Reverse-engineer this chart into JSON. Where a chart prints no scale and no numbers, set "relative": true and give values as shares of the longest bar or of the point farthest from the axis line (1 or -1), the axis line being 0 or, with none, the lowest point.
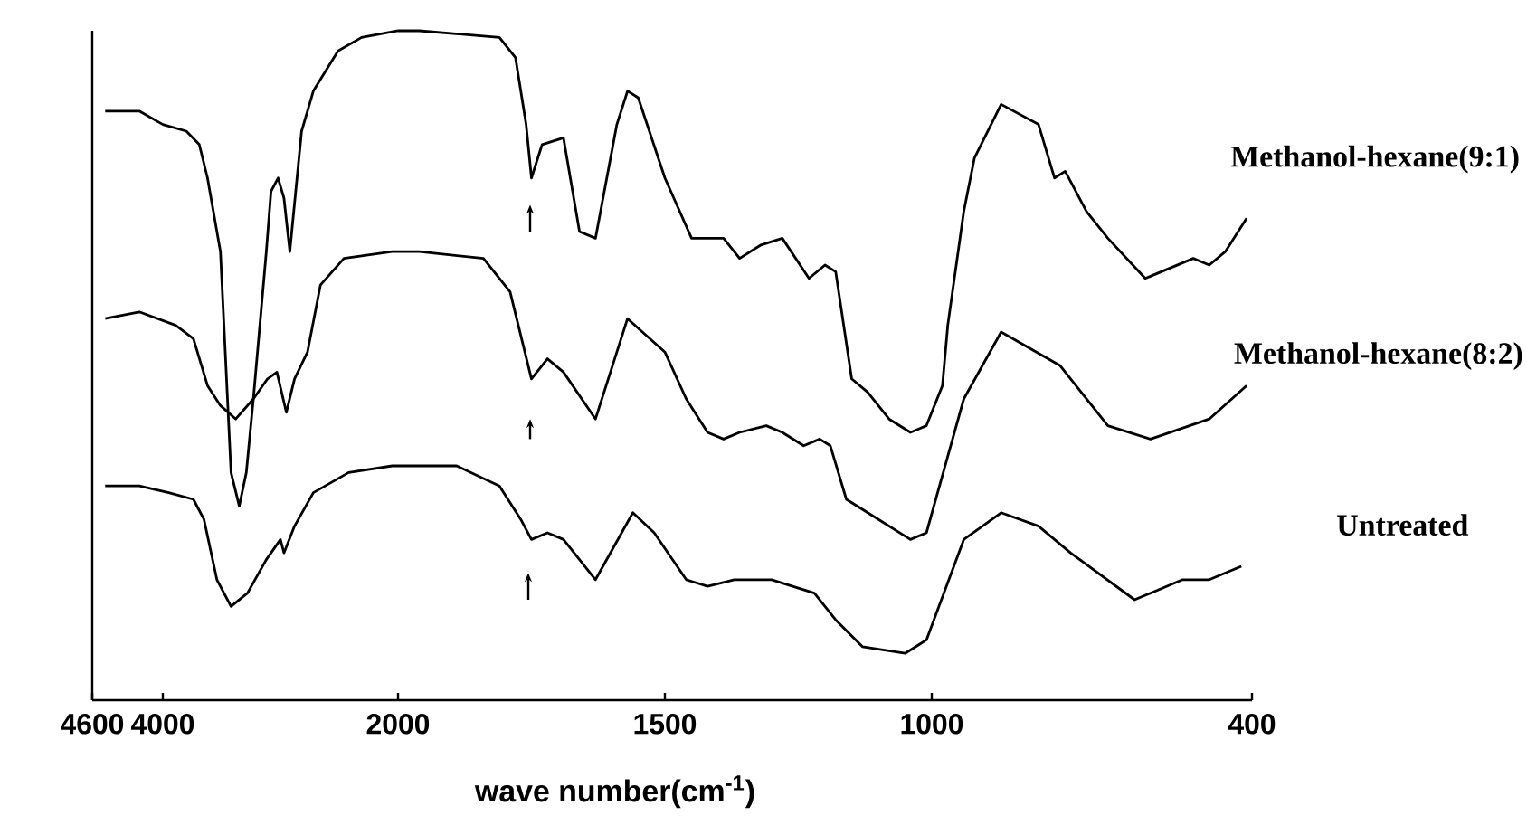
{
  "chart_data": [
    {
      "type": "line",
      "relative": true,
      "xlim": [
        4600,
        2000
      ],
      "xticks": [
        4600,
        4000,
        2000
      ],
      "series": [
        {
          "color": "#000000",
          "x": [
            4490,
            4200,
            4000,
            3800,
            3690,
            3620,
            3510,
            3420,
            3350,
            3290,
            3230,
            3120,
            3080,
            3020,
            2970,
            2920,
            2820,
            2720,
            2510,
            2310,
            2000
          ],
          "values": [
            0.88,
            0.88,
            0.86,
            0.85,
            0.83,
            0.78,
            0.67,
            0.34,
            0.29,
            0.34,
            0.45,
            0.67,
            0.76,
            0.78,
            0.75,
            0.67,
            0.85,
            0.91,
            0.97,
            0.99,
            1.0
          ]
        },
        {
          "color": "#000000",
          "x": [
            4490,
            4200,
            3890,
            3740,
            3620,
            3510,
            3380,
            3230,
            3110,
            3030,
            2950,
            2880,
            2770,
            2660,
            2460,
            2050,
            2000
          ],
          "values": [
            0.57,
            0.58,
            0.56,
            0.54,
            0.47,
            0.44,
            0.42,
            0.45,
            0.48,
            0.49,
            0.43,
            0.48,
            0.52,
            0.62,
            0.66,
            0.67,
            0.67
          ]
        },
        {
          "color": "#000000",
          "x": [
            4490,
            4200,
            3950,
            3740,
            3650,
            3540,
            3420,
            3280,
            3120,
            3000,
            2970,
            2880,
            2720,
            2420,
            2050,
            2000
          ],
          "values": [
            0.32,
            0.32,
            0.31,
            0.3,
            0.27,
            0.18,
            0.14,
            0.16,
            0.21,
            0.24,
            0.22,
            0.26,
            0.31,
            0.34,
            0.35,
            0.35
          ]
        }
      ]
    },
    {
      "type": "line",
      "relative": true,
      "xlabel": "wave number(cm$^{-1}$)",
      "xlim": [
        2000,
        400
      ],
      "xticks": [
        1500,
        1000,
        400
      ],
      "series": [
        {
          "name": "Methanol-hexane(9:1)",
          "color": "#000000",
          "x": [
            2000,
            1960,
            1810,
            1780,
            1760,
            1750,
            1730,
            1690,
            1660,
            1630,
            1590,
            1570,
            1550,
            1500,
            1450,
            1390,
            1360,
            1320,
            1280,
            1230,
            1200,
            1180,
            1150,
            1120,
            1080,
            1040,
            1010,
            980,
            970,
            940,
            920,
            870,
            800,
            770,
            750,
            710,
            670,
            600,
            510,
            480,
            450,
            410
          ],
          "values": [
            1.0,
            1.0,
            0.99,
            0.96,
            0.86,
            0.78,
            0.83,
            0.84,
            0.7,
            0.69,
            0.86,
            0.91,
            0.9,
            0.78,
            0.69,
            0.69,
            0.66,
            0.68,
            0.69,
            0.63,
            0.65,
            0.64,
            0.48,
            0.46,
            0.42,
            0.4,
            0.41,
            0.47,
            0.56,
            0.73,
            0.81,
            0.89,
            0.86,
            0.78,
            0.79,
            0.73,
            0.69,
            0.63,
            0.66,
            0.65,
            0.67,
            0.72
          ]
        },
        {
          "name": "Methanol-hexane(8:2)",
          "color": "#000000",
          "x": [
            2000,
            1960,
            1840,
            1790,
            1750,
            1720,
            1690,
            1630,
            1570,
            1500,
            1460,
            1420,
            1390,
            1360,
            1310,
            1280,
            1240,
            1210,
            1190,
            1160,
            1120,
            1040,
            1010,
            940,
            870,
            760,
            670,
            590,
            480,
            410
          ],
          "values": [
            0.67,
            0.67,
            0.66,
            0.61,
            0.48,
            0.51,
            0.49,
            0.42,
            0.57,
            0.52,
            0.45,
            0.4,
            0.39,
            0.4,
            0.41,
            0.4,
            0.38,
            0.39,
            0.38,
            0.3,
            0.28,
            0.24,
            0.25,
            0.45,
            0.55,
            0.5,
            0.41,
            0.39,
            0.42,
            0.47
          ]
        },
        {
          "name": "Untreated",
          "color": "#000000",
          "x": [
            2000,
            1890,
            1810,
            1770,
            1750,
            1720,
            1690,
            1630,
            1560,
            1520,
            1460,
            1420,
            1370,
            1300,
            1220,
            1180,
            1130,
            1050,
            1010,
            940,
            870,
            800,
            740,
            620,
            530,
            480,
            420
          ],
          "values": [
            0.35,
            0.35,
            0.32,
            0.27,
            0.24,
            0.25,
            0.24,
            0.18,
            0.28,
            0.25,
            0.18,
            0.17,
            0.18,
            0.18,
            0.16,
            0.12,
            0.08,
            0.07,
            0.09,
            0.24,
            0.28,
            0.26,
            0.22,
            0.15,
            0.18,
            0.18,
            0.2
          ]
        }
      ]
    }
  ]
}
